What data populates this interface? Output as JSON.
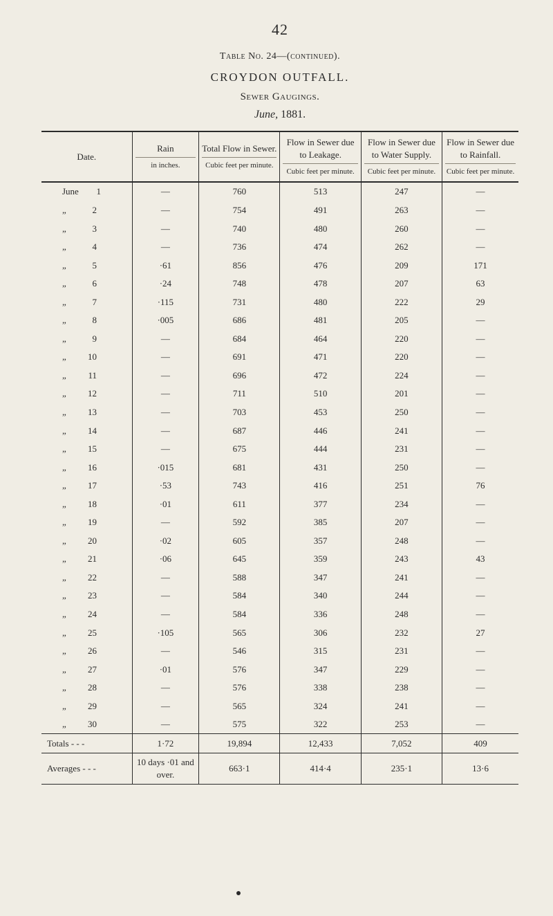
{
  "page_number": "42",
  "table_no_line": "Table No. 24—(continued).",
  "title_main": "CROYDON OUTFALL.",
  "subtitle": "Sewer Gaugings.",
  "date_heading_month": "June,",
  "date_heading_year": "1881.",
  "columns": [
    {
      "header": "Date.",
      "sub": ""
    },
    {
      "header": "Rain",
      "sub": "in inches."
    },
    {
      "header": "Total Flow in Sewer.",
      "sub": "Cubic feet per minute."
    },
    {
      "header": "Flow in Sewer due to Leakage.",
      "sub": "Cubic feet per minute."
    },
    {
      "header": "Flow in Sewer due to Water Supply.",
      "sub": "Cubic feet per minute."
    },
    {
      "header": "Flow in Sewer due to Rainfall.",
      "sub": "Cubic feet per minute."
    }
  ],
  "month_label": "June",
  "ditto": "„",
  "emdash": "—",
  "rows": [
    {
      "day": "1",
      "rain": "—",
      "total": "760",
      "leak": "513",
      "supply": "247",
      "rainfall": "—"
    },
    {
      "day": "2",
      "rain": "—",
      "total": "754",
      "leak": "491",
      "supply": "263",
      "rainfall": "—"
    },
    {
      "day": "3",
      "rain": "—",
      "total": "740",
      "leak": "480",
      "supply": "260",
      "rainfall": "—"
    },
    {
      "day": "4",
      "rain": "—",
      "total": "736",
      "leak": "474",
      "supply": "262",
      "rainfall": "—"
    },
    {
      "day": "5",
      "rain": "·61",
      "total": "856",
      "leak": "476",
      "supply": "209",
      "rainfall": "171"
    },
    {
      "day": "6",
      "rain": "·24",
      "total": "748",
      "leak": "478",
      "supply": "207",
      "rainfall": "63"
    },
    {
      "day": "7",
      "rain": "·115",
      "total": "731",
      "leak": "480",
      "supply": "222",
      "rainfall": "29"
    },
    {
      "day": "8",
      "rain": "·005",
      "total": "686",
      "leak": "481",
      "supply": "205",
      "rainfall": "—"
    },
    {
      "day": "9",
      "rain": "—",
      "total": "684",
      "leak": "464",
      "supply": "220",
      "rainfall": "—"
    },
    {
      "day": "10",
      "rain": "—",
      "total": "691",
      "leak": "471",
      "supply": "220",
      "rainfall": "—"
    },
    {
      "day": "11",
      "rain": "—",
      "total": "696",
      "leak": "472",
      "supply": "224",
      "rainfall": "—"
    },
    {
      "day": "12",
      "rain": "—",
      "total": "711",
      "leak": "510",
      "supply": "201",
      "rainfall": "—"
    },
    {
      "day": "13",
      "rain": "—",
      "total": "703",
      "leak": "453",
      "supply": "250",
      "rainfall": "—"
    },
    {
      "day": "14",
      "rain": "—",
      "total": "687",
      "leak": "446",
      "supply": "241",
      "rainfall": "—"
    },
    {
      "day": "15",
      "rain": "—",
      "total": "675",
      "leak": "444",
      "supply": "231",
      "rainfall": "—"
    },
    {
      "day": "16",
      "rain": "·015",
      "total": "681",
      "leak": "431",
      "supply": "250",
      "rainfall": "—"
    },
    {
      "day": "17",
      "rain": "·53",
      "total": "743",
      "leak": "416",
      "supply": "251",
      "rainfall": "76"
    },
    {
      "day": "18",
      "rain": "·01",
      "total": "611",
      "leak": "377",
      "supply": "234",
      "rainfall": "—"
    },
    {
      "day": "19",
      "rain": "—",
      "total": "592",
      "leak": "385",
      "supply": "207",
      "rainfall": "—"
    },
    {
      "day": "20",
      "rain": "·02",
      "total": "605",
      "leak": "357",
      "supply": "248",
      "rainfall": "—"
    },
    {
      "day": "21",
      "rain": "·06",
      "total": "645",
      "leak": "359",
      "supply": "243",
      "rainfall": "43"
    },
    {
      "day": "22",
      "rain": "—",
      "total": "588",
      "leak": "347",
      "supply": "241",
      "rainfall": "—"
    },
    {
      "day": "23",
      "rain": "—",
      "total": "584",
      "leak": "340",
      "supply": "244",
      "rainfall": "—"
    },
    {
      "day": "24",
      "rain": "—",
      "total": "584",
      "leak": "336",
      "supply": "248",
      "rainfall": "—"
    },
    {
      "day": "25",
      "rain": "·105",
      "total": "565",
      "leak": "306",
      "supply": "232",
      "rainfall": "27"
    },
    {
      "day": "26",
      "rain": "—",
      "total": "546",
      "leak": "315",
      "supply": "231",
      "rainfall": "—"
    },
    {
      "day": "27",
      "rain": "·01",
      "total": "576",
      "leak": "347",
      "supply": "229",
      "rainfall": "—"
    },
    {
      "day": "28",
      "rain": "—",
      "total": "576",
      "leak": "338",
      "supply": "238",
      "rainfall": "—"
    },
    {
      "day": "29",
      "rain": "—",
      "total": "565",
      "leak": "324",
      "supply": "241",
      "rainfall": "—"
    },
    {
      "day": "30",
      "rain": "—",
      "total": "575",
      "leak": "322",
      "supply": "253",
      "rainfall": "—"
    }
  ],
  "totals_row": {
    "label": "Totals   -   -   -",
    "rain": "1·72",
    "total": "19,894",
    "leak": "12,433",
    "supply": "7,052",
    "rainfall": "409"
  },
  "averages_row": {
    "label": "Averages -   -   -",
    "rain": "10 days ·01 and over.",
    "total": "663·1",
    "leak": "414·4",
    "supply": "235·1",
    "rainfall": "13·6"
  },
  "col_widths": [
    "19%",
    "14%",
    "17%",
    "17%",
    "17%",
    "16%"
  ]
}
